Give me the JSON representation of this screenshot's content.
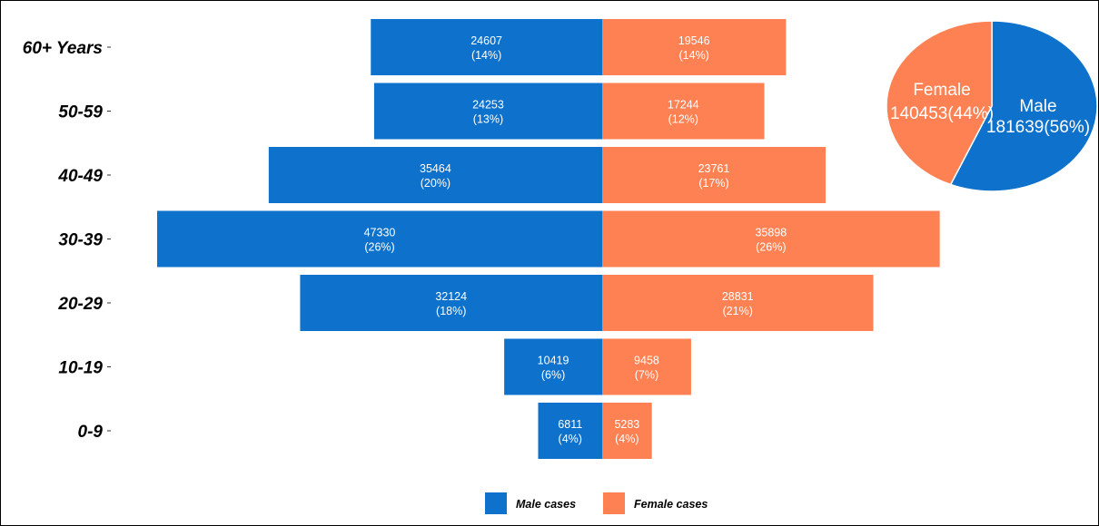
{
  "chart_data": [
    {
      "type": "bar",
      "orientation": "horizontal-pyramid",
      "categories": [
        "60+ Years",
        "50-59",
        "40-49",
        "30-39",
        "20-29",
        "10-19",
        "0-9"
      ],
      "series": [
        {
          "name": "Male cases",
          "color": "#0E72CC",
          "values": [
            24607,
            24253,
            35464,
            47330,
            32124,
            10419,
            6811
          ],
          "percent_labels": [
            "(14%)",
            "(13%)",
            "(20%)",
            "(26%)",
            "(18%)",
            "(6%)",
            "(4%)"
          ]
        },
        {
          "name": "Female cases",
          "color": "#FE8153",
          "values": [
            19546,
            17244,
            23761,
            35898,
            28831,
            9458,
            5283
          ],
          "percent_labels": [
            "(14%)",
            "(12%)",
            "(17%)",
            "(26%)",
            "(21%)",
            "(7%)",
            "(4%)"
          ]
        }
      ],
      "grid": false,
      "legend": "bottom"
    },
    {
      "type": "pie",
      "labels": [
        "Male",
        "Female"
      ],
      "values": [
        181639,
        140453
      ],
      "value_labels": [
        "181639(56%)",
        "140453(44%)"
      ],
      "colors": [
        "#0E72CC",
        "#FE8153"
      ],
      "legend": "none"
    }
  ]
}
